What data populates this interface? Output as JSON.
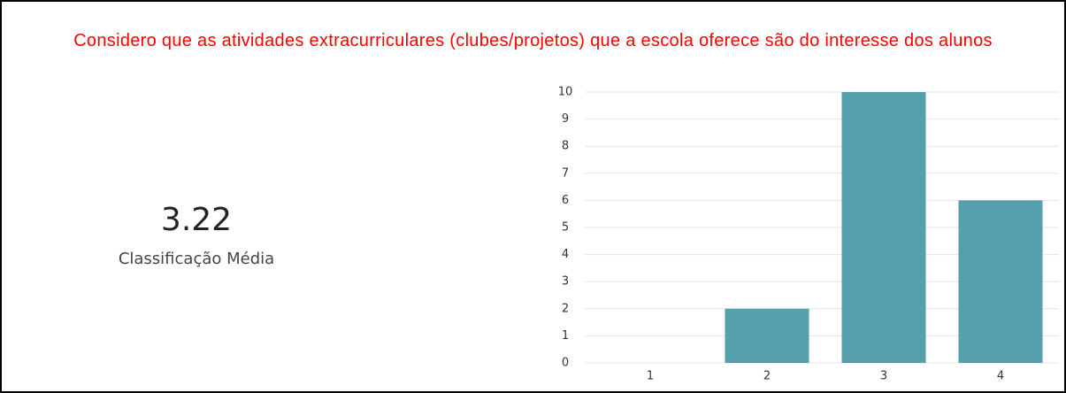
{
  "chart_data": {
    "type": "bar",
    "title": "Considero que as atividades extracurriculares (clubes/projetos) que a escola oferece são do interesse dos alunos",
    "average": 3.22,
    "average_label": "Classificação Média",
    "categories": [
      "1",
      "2",
      "3",
      "4"
    ],
    "values": [
      0,
      2,
      10,
      6
    ],
    "color": "#55a0ac",
    "ylim": [
      0,
      10
    ],
    "yticks": [
      0,
      1,
      2,
      3,
      4,
      5,
      6,
      7,
      8,
      9,
      10
    ],
    "grid": true
  }
}
